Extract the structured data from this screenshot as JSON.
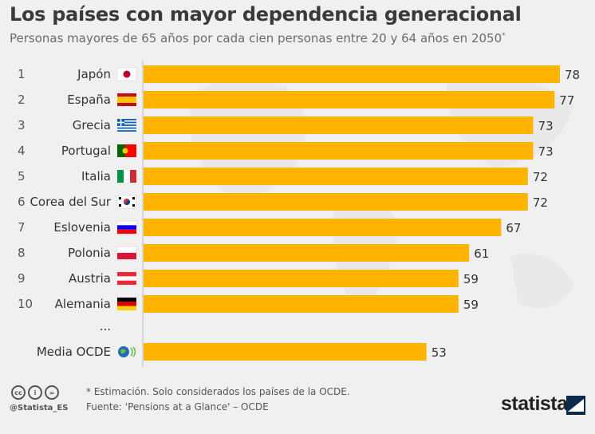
{
  "title": "Los países con mayor dependencia generacional",
  "subtitle": "Personas mayores de 65 años por cada cien personas entre 20 y 64 años en 2050",
  "subtitle_mark": "*",
  "ellipsis": "...",
  "footer": {
    "note": "* Estimación. Solo considerados los países de la OCDE.",
    "source": "Fuente: 'Pensions at a Glance' – OCDE",
    "handle": "@Statista_ES",
    "brand": "statista",
    "cc_icons": [
      "cc-icon",
      "by-icon",
      "nd-icon"
    ]
  },
  "colors": {
    "bar": "#ffb400",
    "text": "#333333",
    "axis": "#bbbbbb"
  },
  "chart_data": {
    "type": "bar",
    "orientation": "horizontal",
    "categories": [
      "Japón",
      "España",
      "Grecia",
      "Portugal",
      "Italia",
      "Corea del Sur",
      "Eslovenia",
      "Polonia",
      "Austria",
      "Alemania",
      "Media OCDE"
    ],
    "ranks": [
      "1",
      "2",
      "3",
      "4",
      "5",
      "6",
      "7",
      "8",
      "9",
      "10",
      ""
    ],
    "flags": [
      "japan-flag",
      "spain-flag",
      "greece-flag",
      "portugal-flag",
      "italy-flag",
      "south-korea-flag",
      "slovenia-flag",
      "poland-flag",
      "austria-flag",
      "germany-flag",
      "oecd-logo"
    ],
    "values": [
      78,
      77,
      73,
      73,
      72,
      72,
      67,
      61,
      59,
      59,
      53
    ],
    "xlim": [
      0,
      78
    ]
  }
}
